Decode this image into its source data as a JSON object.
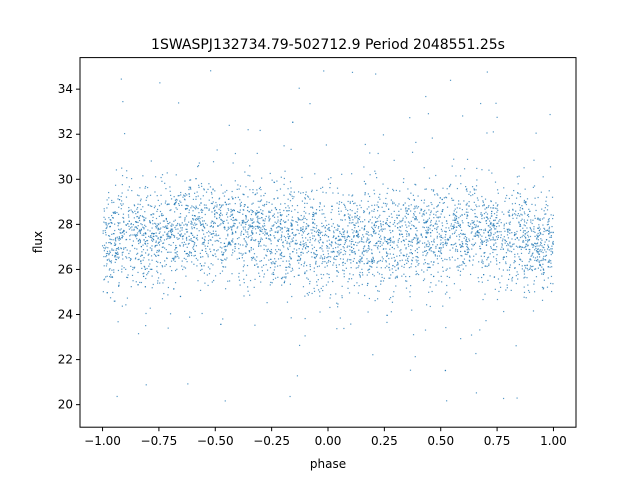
{
  "chart_data": {
    "type": "scatter",
    "title": "1SWASPJ132734.79-502712.9 Period 2048551.25s",
    "xlabel": "phase",
    "ylabel": "flux",
    "xlim": [
      -1.1,
      1.1
    ],
    "ylim": [
      19.0,
      35.4
    ],
    "x_ticks": [
      -1.0,
      -0.75,
      -0.5,
      -0.25,
      0.0,
      0.25,
      0.5,
      0.75,
      1.0
    ],
    "x_tick_labels": [
      "−1.00",
      "−0.75",
      "−0.50",
      "−0.25",
      "0.00",
      "0.25",
      "0.50",
      "0.75",
      "1.00"
    ],
    "y_ticks": [
      20,
      22,
      24,
      26,
      28,
      30,
      32,
      34
    ],
    "y_tick_labels": [
      "20",
      "22",
      "24",
      "26",
      "28",
      "30",
      "32",
      "34"
    ],
    "grid": false,
    "point_color": "#1f77b4",
    "series": [
      {
        "phase_range": [
          -1.0,
          1.0
        ],
        "flux_profile": [
          {
            "phase": -1.0,
            "median": 27.0,
            "low": 20.0,
            "high": 34.8
          },
          {
            "phase": -0.75,
            "median": 27.6,
            "low": 21.0,
            "high": 34.5
          },
          {
            "phase": -0.5,
            "median": 27.8,
            "low": 20.0,
            "high": 35.0
          },
          {
            "phase": -0.25,
            "median": 27.6,
            "low": 20.2,
            "high": 35.0
          },
          {
            "phase": 0.0,
            "median": 27.1,
            "low": 19.8,
            "high": 35.0
          },
          {
            "phase": 0.25,
            "median": 27.3,
            "low": 20.5,
            "high": 34.8
          },
          {
            "phase": 0.5,
            "median": 27.7,
            "low": 20.0,
            "high": 35.0
          },
          {
            "phase": 0.75,
            "median": 27.6,
            "low": 20.2,
            "high": 35.0
          },
          {
            "phase": 1.0,
            "median": 27.0,
            "low": 19.8,
            "high": 34.8
          }
        ]
      }
    ]
  }
}
